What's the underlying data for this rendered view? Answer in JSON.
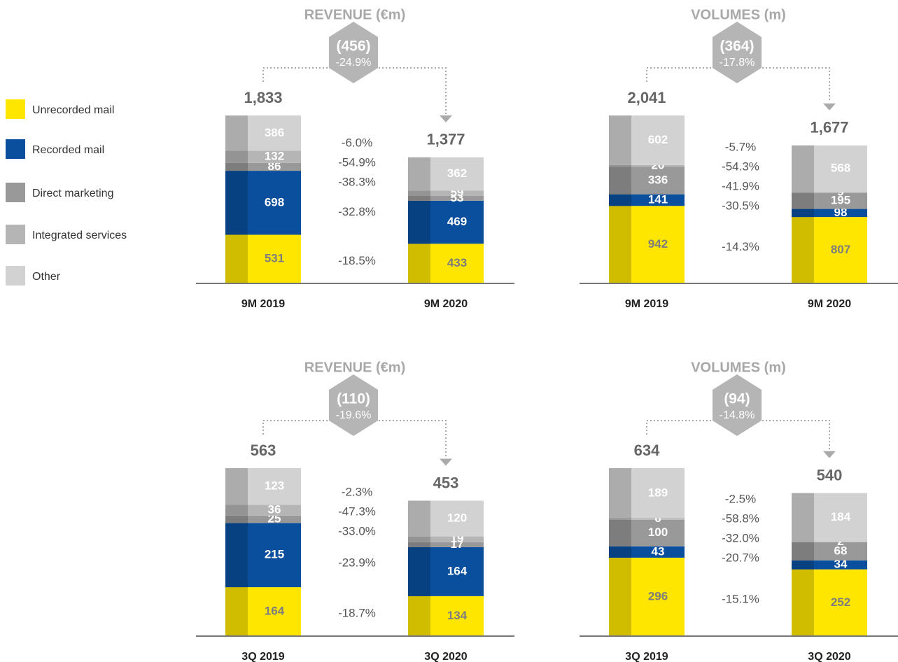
{
  "legend": [
    {
      "name": "Unrecorded mail",
      "color": "#ffe600"
    },
    {
      "name": "Recorded mail",
      "color": "#0a4f9e"
    },
    {
      "name": "Direct marketing",
      "color": "#999999"
    },
    {
      "name": "Integrated services",
      "color": "#b5b5b5"
    },
    {
      "name": "Other",
      "color": "#d2d2d2"
    }
  ],
  "chart_data": [
    {
      "type": "stacked-bar",
      "title": "REVENUE (€m)",
      "categories": [
        "9M 2019",
        "9M 2020"
      ],
      "series": [
        {
          "values": [
            531,
            433
          ]
        },
        {
          "values": [
            698,
            469
          ]
        },
        {
          "values": [
            86,
            53
          ]
        },
        {
          "values": [
            132,
            59
          ]
        },
        {
          "values": [
            386,
            362
          ]
        }
      ],
      "total_labels": [
        "1,833",
        "1,377"
      ],
      "difference": "(456)",
      "difference_pct": "-24.9%",
      "segment_changes": [
        "-18.5%",
        "-32.8%",
        "-38.3%",
        "-54.9%",
        "-6.0%"
      ]
    },
    {
      "type": "stacked-bar",
      "title": "VOLUMES (m)",
      "categories": [
        "9M 2019",
        "9M 2020"
      ],
      "series": [
        {
          "values": [
            942,
            807
          ]
        },
        {
          "values": [
            141,
            98
          ]
        },
        {
          "values": [
            336,
            195
          ]
        },
        {
          "values": [
            20,
            9
          ]
        },
        {
          "values": [
            602,
            568
          ]
        }
      ],
      "total_labels": [
        "2,041",
        "1,677"
      ],
      "difference": "(364)",
      "difference_pct": "-17.8%",
      "segment_changes": [
        "-14.3%",
        "-30.5%",
        "-41.9%",
        "-54.3%",
        "-5.7%"
      ]
    },
    {
      "type": "stacked-bar",
      "title": "REVENUE (€m)",
      "categories": [
        "3Q 2019",
        "3Q 2020"
      ],
      "series": [
        {
          "values": [
            164,
            134
          ]
        },
        {
          "values": [
            215,
            164
          ]
        },
        {
          "values": [
            25,
            17
          ]
        },
        {
          "values": [
            36,
            19
          ]
        },
        {
          "values": [
            123,
            120
          ]
        }
      ],
      "total_labels": [
        "563",
        "453"
      ],
      "difference": "(110)",
      "difference_pct": "-19.6%",
      "segment_changes": [
        "-18.7%",
        "-23.9%",
        "-33.0%",
        "-47.3%",
        "-2.3%"
      ]
    },
    {
      "type": "stacked-bar",
      "title": "VOLUMES (m)",
      "categories": [
        "3Q 2019",
        "3Q 2020"
      ],
      "series": [
        {
          "values": [
            296,
            252
          ]
        },
        {
          "values": [
            43,
            34
          ]
        },
        {
          "values": [
            100,
            68
          ]
        },
        {
          "values": [
            6,
            2
          ]
        },
        {
          "values": [
            189,
            184
          ]
        }
      ],
      "total_labels": [
        "634",
        "540"
      ],
      "difference": "(94)",
      "difference_pct": "-14.8%",
      "segment_changes": [
        "-15.1%",
        "-20.7%",
        "-32.0%",
        "-58.8%",
        "-2.5%"
      ]
    }
  ]
}
